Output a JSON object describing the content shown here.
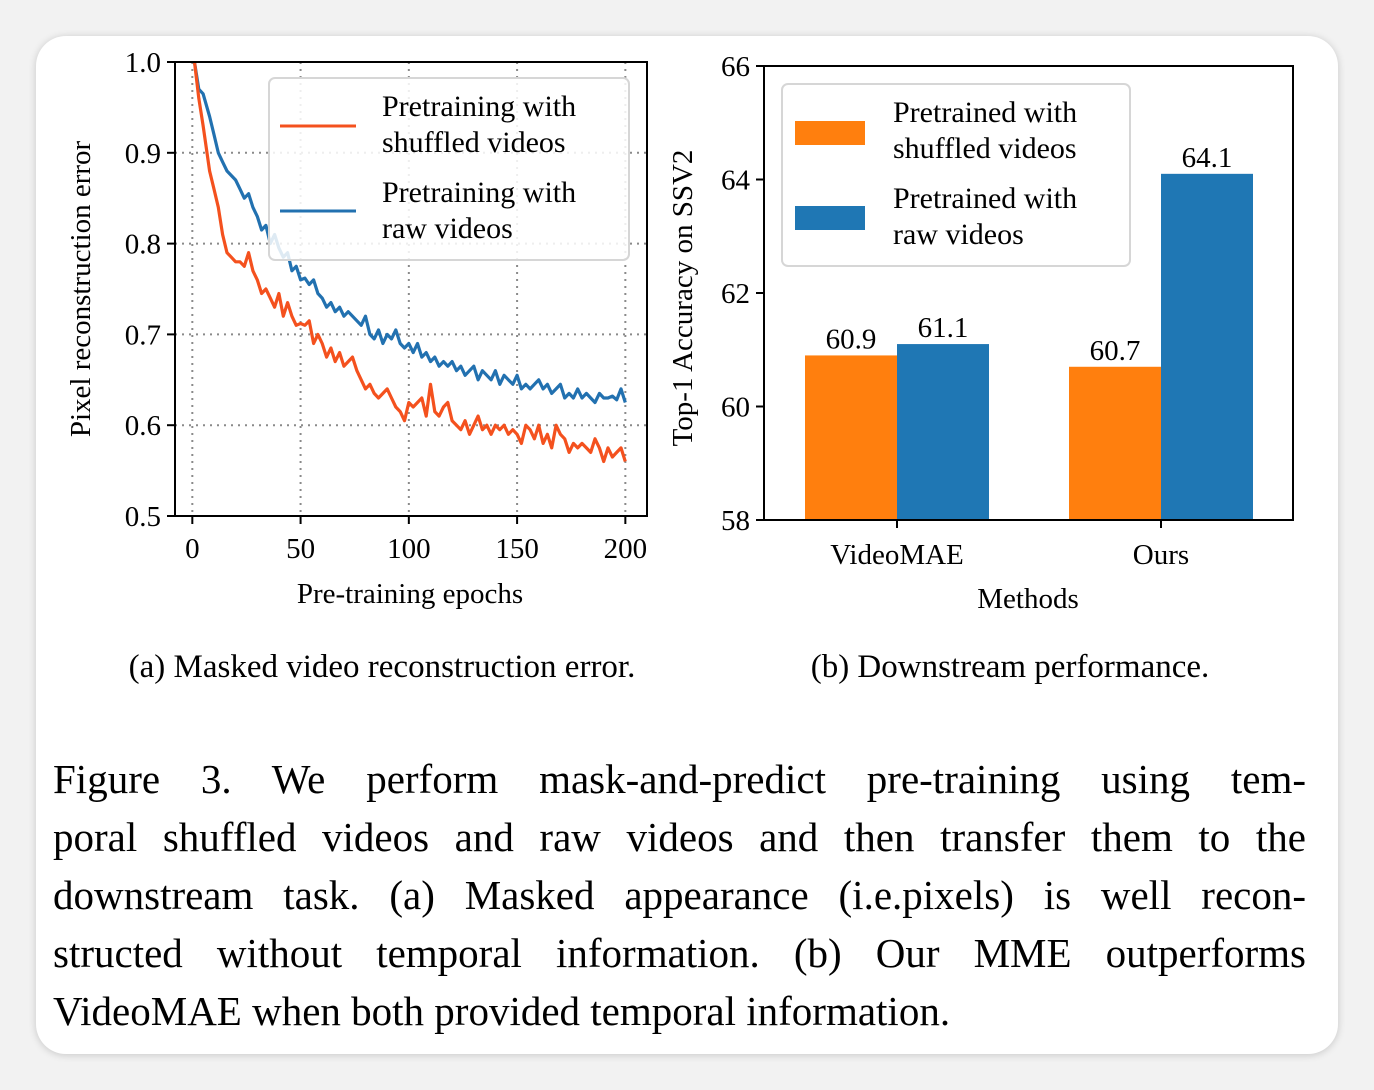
{
  "chart_data": [
    {
      "type": "line",
      "xlabel": "Pre-training epochs",
      "ylabel": "Pixel reconstruction error",
      "xlim": [
        -8,
        210
      ],
      "ylim": [
        0.5,
        1.0
      ],
      "xticks": [
        "0",
        "50",
        "100",
        "150",
        "200"
      ],
      "yticks": [
        "0.5",
        "0.6",
        "0.7",
        "0.8",
        "0.9",
        "1.0"
      ],
      "grid": "on (dotted)",
      "legend_position": "top-right",
      "series": [
        {
          "name": "Pretraining with shuffled videos",
          "color": "#f4511e",
          "x": [
            1,
            3,
            5,
            8,
            10,
            12,
            14,
            16,
            18,
            20,
            22,
            24,
            26,
            28,
            30,
            32,
            34,
            36,
            38,
            40,
            42,
            44,
            46,
            48,
            50,
            52,
            54,
            56,
            58,
            60,
            62,
            64,
            66,
            68,
            70,
            72,
            74,
            76,
            78,
            80,
            82,
            84,
            86,
            88,
            90,
            92,
            94,
            96,
            98,
            100,
            102,
            104,
            106,
            108,
            110,
            112,
            114,
            116,
            118,
            120,
            122,
            124,
            126,
            128,
            130,
            132,
            134,
            136,
            138,
            140,
            142,
            144,
            146,
            148,
            150,
            152,
            154,
            156,
            158,
            160,
            162,
            164,
            166,
            168,
            170,
            172,
            174,
            176,
            178,
            180,
            182,
            184,
            186,
            188,
            190,
            192,
            194,
            196,
            198,
            200
          ],
          "y": [
            1.0,
            0.96,
            0.93,
            0.88,
            0.86,
            0.84,
            0.81,
            0.79,
            0.785,
            0.78,
            0.78,
            0.775,
            0.79,
            0.77,
            0.76,
            0.745,
            0.75,
            0.74,
            0.73,
            0.745,
            0.72,
            0.735,
            0.72,
            0.71,
            0.712,
            0.71,
            0.715,
            0.69,
            0.7,
            0.69,
            0.675,
            0.685,
            0.67,
            0.68,
            0.665,
            0.67,
            0.675,
            0.66,
            0.65,
            0.64,
            0.645,
            0.635,
            0.63,
            0.635,
            0.64,
            0.63,
            0.62,
            0.615,
            0.605,
            0.625,
            0.62,
            0.625,
            0.63,
            0.61,
            0.645,
            0.615,
            0.61,
            0.62,
            0.625,
            0.605,
            0.6,
            0.595,
            0.605,
            0.59,
            0.6,
            0.61,
            0.595,
            0.6,
            0.59,
            0.6,
            0.595,
            0.6,
            0.59,
            0.595,
            0.59,
            0.58,
            0.6,
            0.595,
            0.585,
            0.6,
            0.58,
            0.59,
            0.575,
            0.6,
            0.59,
            0.585,
            0.57,
            0.58,
            0.575,
            0.58,
            0.575,
            0.57,
            0.585,
            0.575,
            0.56,
            0.575,
            0.565,
            0.57,
            0.575,
            0.56
          ]
        },
        {
          "name": "Pretraining with raw videos",
          "color": "#2271b0",
          "x": [
            1,
            3,
            5,
            8,
            10,
            12,
            14,
            16,
            18,
            20,
            22,
            24,
            26,
            28,
            30,
            32,
            34,
            36,
            38,
            40,
            42,
            44,
            46,
            48,
            50,
            52,
            54,
            56,
            58,
            60,
            62,
            64,
            66,
            68,
            70,
            72,
            74,
            76,
            78,
            80,
            82,
            84,
            86,
            88,
            90,
            92,
            94,
            96,
            98,
            100,
            102,
            104,
            106,
            108,
            110,
            112,
            114,
            116,
            118,
            120,
            122,
            124,
            126,
            128,
            130,
            132,
            134,
            136,
            138,
            140,
            142,
            144,
            146,
            148,
            150,
            152,
            154,
            156,
            158,
            160,
            162,
            164,
            166,
            168,
            170,
            172,
            174,
            176,
            178,
            180,
            182,
            184,
            186,
            188,
            190,
            192,
            194,
            196,
            198,
            200
          ],
          "y": [
            1.0,
            0.97,
            0.965,
            0.94,
            0.92,
            0.9,
            0.89,
            0.88,
            0.875,
            0.87,
            0.86,
            0.85,
            0.855,
            0.84,
            0.83,
            0.815,
            0.82,
            0.8,
            0.81,
            0.795,
            0.785,
            0.79,
            0.77,
            0.775,
            0.76,
            0.762,
            0.755,
            0.76,
            0.745,
            0.74,
            0.73,
            0.735,
            0.725,
            0.73,
            0.72,
            0.725,
            0.72,
            0.715,
            0.71,
            0.72,
            0.7,
            0.695,
            0.705,
            0.69,
            0.7,
            0.695,
            0.705,
            0.69,
            0.685,
            0.69,
            0.68,
            0.69,
            0.675,
            0.68,
            0.67,
            0.675,
            0.665,
            0.67,
            0.665,
            0.67,
            0.66,
            0.665,
            0.655,
            0.66,
            0.665,
            0.65,
            0.66,
            0.655,
            0.65,
            0.66,
            0.645,
            0.655,
            0.65,
            0.645,
            0.655,
            0.64,
            0.645,
            0.64,
            0.645,
            0.65,
            0.64,
            0.645,
            0.635,
            0.64,
            0.645,
            0.63,
            0.635,
            0.63,
            0.64,
            0.63,
            0.635,
            0.63,
            0.625,
            0.635,
            0.63,
            0.63,
            0.632,
            0.628,
            0.64,
            0.625
          ]
        }
      ]
    },
    {
      "type": "bar",
      "xlabel": "Methods",
      "ylabel": "Top-1 Accuracy on SSV2",
      "ylim": [
        58,
        66
      ],
      "yticks": [
        "58",
        "60",
        "62",
        "64",
        "66"
      ],
      "categories": [
        "VideoMAE",
        "Ours"
      ],
      "legend_position": "top-left",
      "series": [
        {
          "name": "Pretrained with shuffled videos",
          "color": "#ff7f0e",
          "values": [
            60.9,
            60.7
          ],
          "labels": [
            "60.9",
            "60.7"
          ]
        },
        {
          "name": "Pretrained with raw videos",
          "color": "#1f77b4",
          "values": [
            61.1,
            64.1
          ],
          "labels": [
            "61.1",
            "64.1"
          ]
        }
      ]
    }
  ],
  "text": {
    "sub_a": "(a) Masked video reconstruction error.",
    "sub_b": "(b) Downstream performance.",
    "legend_a": [
      [
        "Pretraining with",
        "shuffled videos"
      ],
      [
        "Pretraining with",
        "raw videos"
      ]
    ],
    "legend_b": [
      [
        "Pretrained with",
        "shuffled videos"
      ],
      [
        "Pretrained with",
        "raw videos"
      ]
    ],
    "caption_lines": [
      "Figure 3.  We perform mask-and-predict pre-training using tem-",
      "poral shuffled videos and raw videos and then transfer them to the",
      "downstream task. (a) Masked appearance (i.e.pixels) is well recon-",
      "structed without temporal information. (b) Our MME outperforms",
      "VideoMAE when both provided temporal information."
    ]
  }
}
